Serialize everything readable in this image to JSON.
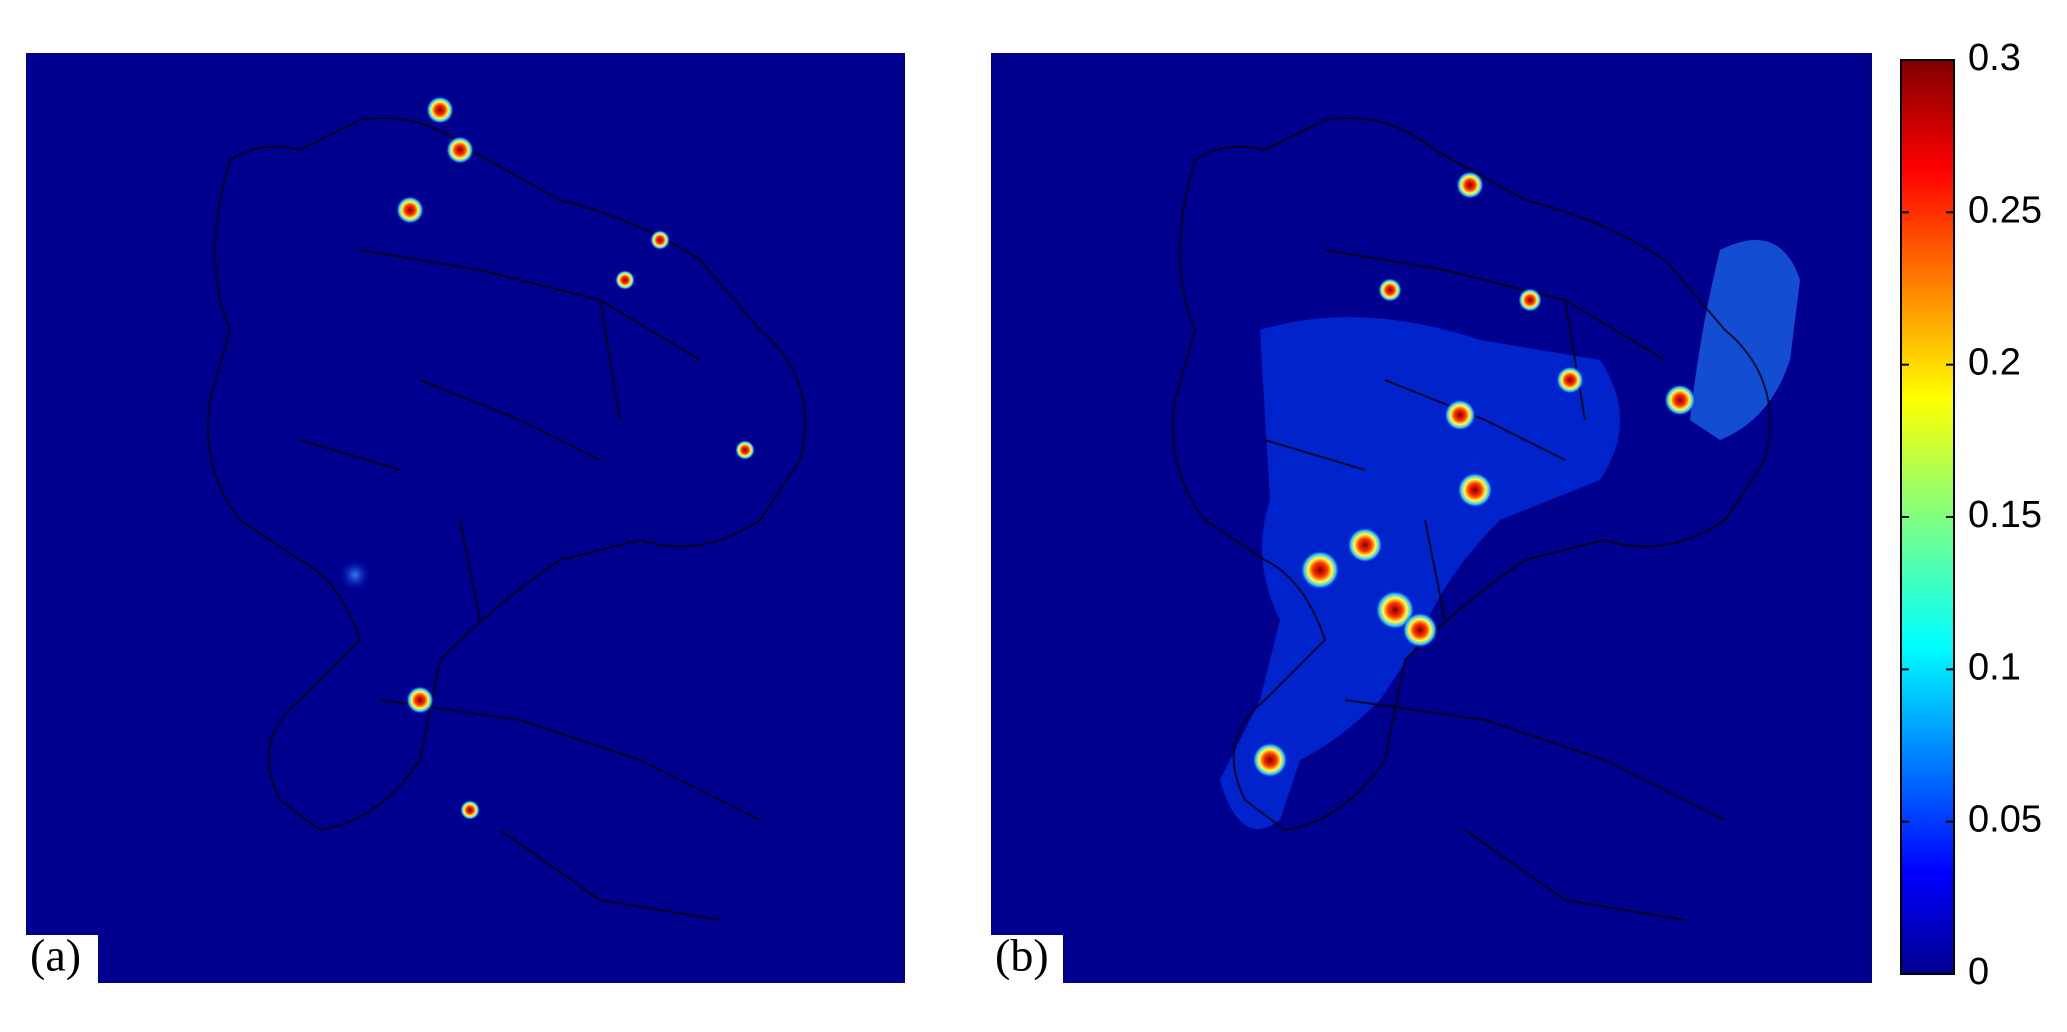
{
  "panels": [
    {
      "label": "(a)"
    },
    {
      "label": "(b)"
    }
  ],
  "colorbar": {
    "lim": [
      0,
      0.3
    ],
    "ticks": [
      0,
      0.05,
      0.1,
      0.15,
      0.2,
      0.25,
      0.3
    ]
  }
}
